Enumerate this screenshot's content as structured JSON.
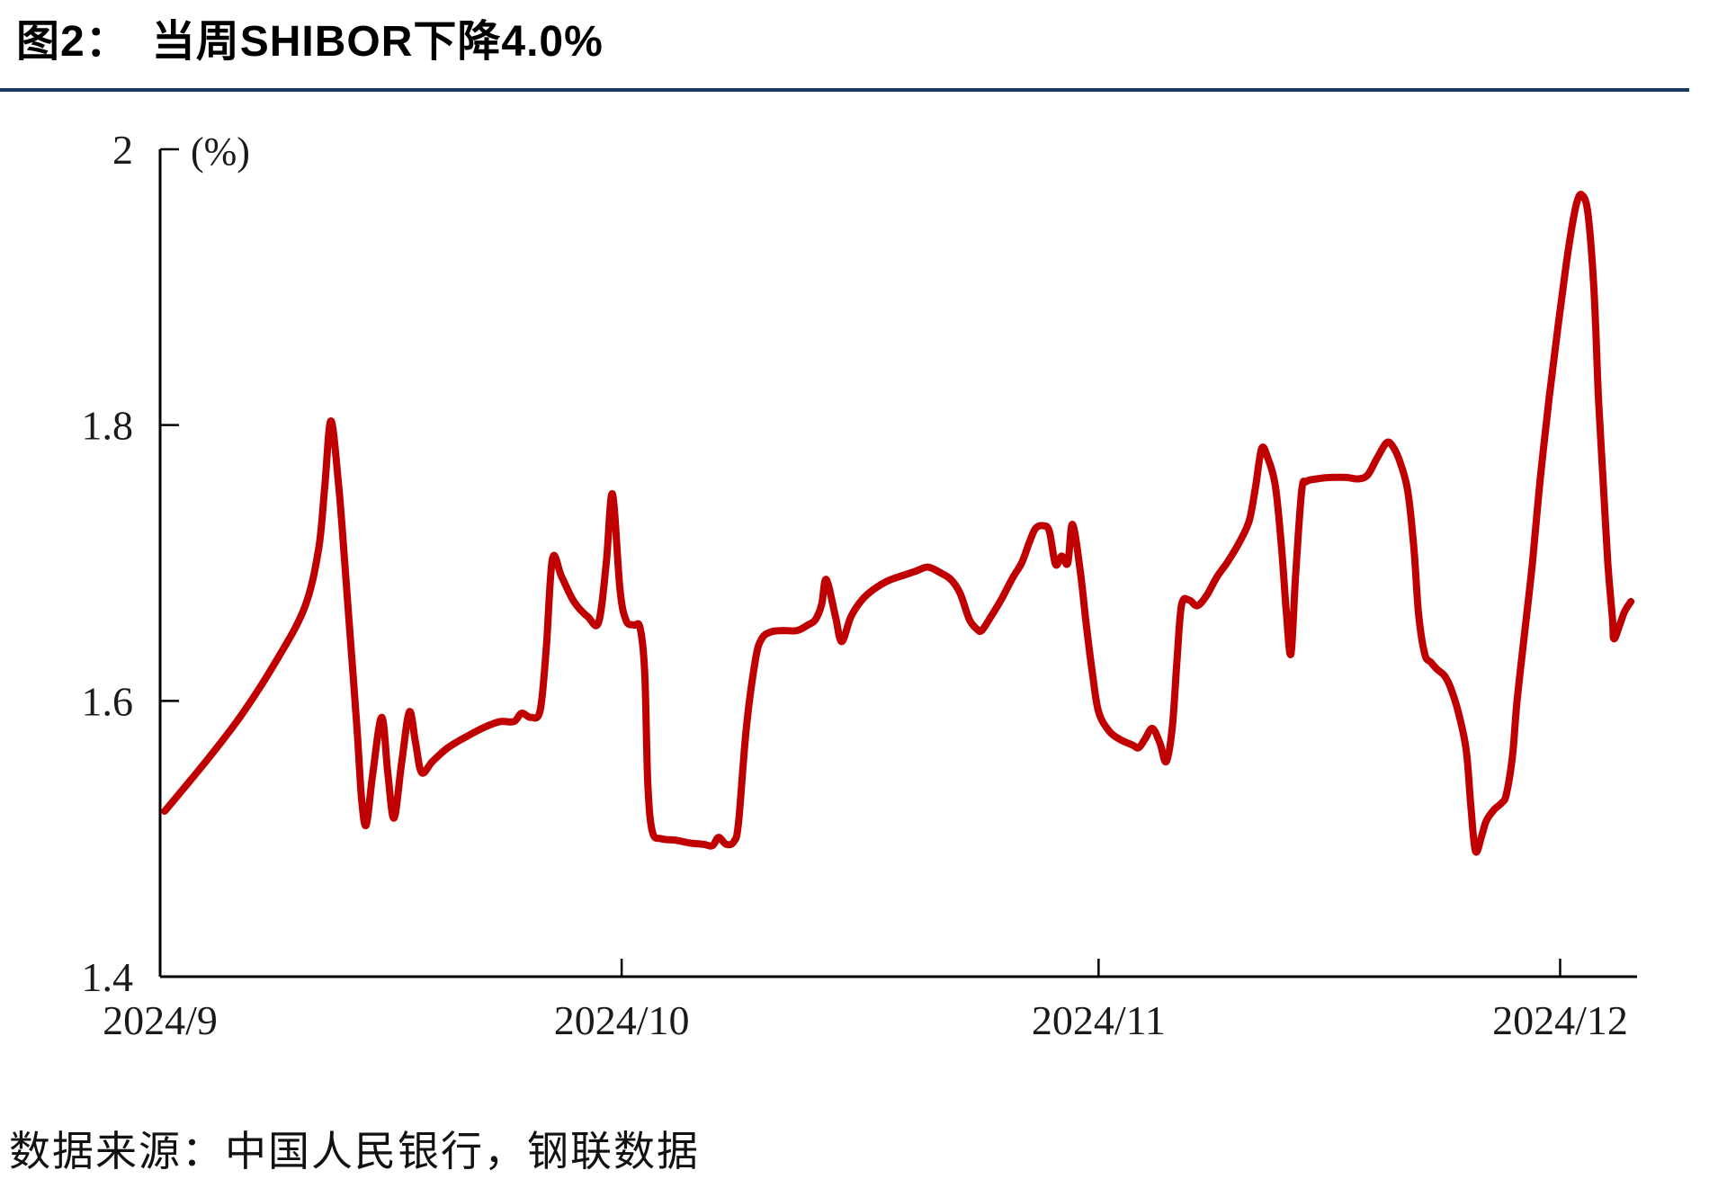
{
  "header": {
    "title": "图2：　当周SHIBOR下降4.0%"
  },
  "footer": {
    "source": "数据来源：中国人民银行，钢联数据"
  },
  "colors": {
    "line": "#C00000",
    "divider": "#17375E",
    "axis": "#000000",
    "tick_text": "#1a1a1a"
  },
  "chart_data": {
    "type": "line",
    "title": "图2：当周SHIBOR下降4.0%",
    "unit_label": "(%)",
    "ylim": [
      1.4,
      2.0
    ],
    "yticks": [
      {
        "value": 2.0,
        "label": "2"
      },
      {
        "value": 1.8,
        "label": "1.8"
      },
      {
        "value": 1.6,
        "label": "1.6"
      },
      {
        "value": 1.4,
        "label": "1.4"
      }
    ],
    "x_start_date": "2024/9/1",
    "x_domain_days": [
      0,
      96
    ],
    "x_ticks": [
      {
        "day": 0,
        "label": "2024/9"
      },
      {
        "day": 30,
        "label": "2024/10"
      },
      {
        "day": 61,
        "label": "2024/11"
      },
      {
        "day": 91,
        "label": "2024/12"
      }
    ],
    "grid": false,
    "legend": "none",
    "series": [
      {
        "name": "SHIBOR",
        "unit": "%",
        "points": [
          [
            0.3,
            1.52
          ],
          [
            2.9,
            1.555
          ],
          [
            5.3,
            1.59
          ],
          [
            7.6,
            1.63
          ],
          [
            9.4,
            1.668
          ],
          [
            10.3,
            1.71
          ],
          [
            10.7,
            1.755
          ],
          [
            11.1,
            1.803
          ],
          [
            11.6,
            1.757
          ],
          [
            12.0,
            1.7
          ],
          [
            12.4,
            1.64
          ],
          [
            12.8,
            1.58
          ],
          [
            13.1,
            1.528
          ],
          [
            13.4,
            1.51
          ],
          [
            13.8,
            1.545
          ],
          [
            14.4,
            1.588
          ],
          [
            14.8,
            1.548
          ],
          [
            15.2,
            1.515
          ],
          [
            15.7,
            1.555
          ],
          [
            16.2,
            1.592
          ],
          [
            16.6,
            1.57
          ],
          [
            17.0,
            1.548
          ],
          [
            17.7,
            1.556
          ],
          [
            18.7,
            1.566
          ],
          [
            19.9,
            1.574
          ],
          [
            21.1,
            1.581
          ],
          [
            22.1,
            1.585
          ],
          [
            23.0,
            1.585
          ],
          [
            23.5,
            1.591
          ],
          [
            24.1,
            1.588
          ],
          [
            24.7,
            1.593
          ],
          [
            25.1,
            1.638
          ],
          [
            25.5,
            1.703
          ],
          [
            26.1,
            1.69
          ],
          [
            26.9,
            1.672
          ],
          [
            27.8,
            1.661
          ],
          [
            28.5,
            1.657
          ],
          [
            29.0,
            1.7
          ],
          [
            29.4,
            1.75
          ],
          [
            29.9,
            1.68
          ],
          [
            30.3,
            1.658
          ],
          [
            30.8,
            1.655
          ],
          [
            31.2,
            1.653
          ],
          [
            31.5,
            1.62
          ],
          [
            31.7,
            1.54
          ],
          [
            32.0,
            1.505
          ],
          [
            32.6,
            1.5
          ],
          [
            33.5,
            1.499
          ],
          [
            34.4,
            1.497
          ],
          [
            35.3,
            1.496
          ],
          [
            35.9,
            1.495
          ],
          [
            36.3,
            1.501
          ],
          [
            36.8,
            1.496
          ],
          [
            37.3,
            1.498
          ],
          [
            37.6,
            1.512
          ],
          [
            38.1,
            1.58
          ],
          [
            38.7,
            1.63
          ],
          [
            39.1,
            1.645
          ],
          [
            39.7,
            1.65
          ],
          [
            40.5,
            1.651
          ],
          [
            41.4,
            1.651
          ],
          [
            42.1,
            1.655
          ],
          [
            42.6,
            1.659
          ],
          [
            43.0,
            1.67
          ],
          [
            43.3,
            1.688
          ],
          [
            43.9,
            1.661
          ],
          [
            44.3,
            1.643
          ],
          [
            44.9,
            1.661
          ],
          [
            45.6,
            1.673
          ],
          [
            46.4,
            1.681
          ],
          [
            47.3,
            1.687
          ],
          [
            48.3,
            1.691
          ],
          [
            49.1,
            1.694
          ],
          [
            49.9,
            1.697
          ],
          [
            50.7,
            1.693
          ],
          [
            51.4,
            1.688
          ],
          [
            52.0,
            1.678
          ],
          [
            52.6,
            1.659
          ],
          [
            53.1,
            1.652
          ],
          [
            53.4,
            1.651
          ],
          [
            54.0,
            1.661
          ],
          [
            54.7,
            1.674
          ],
          [
            55.4,
            1.689
          ],
          [
            56.0,
            1.7
          ],
          [
            56.5,
            1.715
          ],
          [
            56.9,
            1.725
          ],
          [
            57.4,
            1.727
          ],
          [
            57.8,
            1.723
          ],
          [
            58.2,
            1.699
          ],
          [
            58.6,
            1.705
          ],
          [
            59.0,
            1.7
          ],
          [
            59.3,
            1.728
          ],
          [
            59.8,
            1.695
          ],
          [
            60.2,
            1.655
          ],
          [
            60.6,
            1.62
          ],
          [
            61.0,
            1.592
          ],
          [
            61.7,
            1.578
          ],
          [
            62.4,
            1.572
          ],
          [
            63.2,
            1.568
          ],
          [
            63.6,
            1.566
          ],
          [
            64.0,
            1.572
          ],
          [
            64.5,
            1.58
          ],
          [
            65.0,
            1.569
          ],
          [
            65.4,
            1.556
          ],
          [
            65.8,
            1.582
          ],
          [
            66.1,
            1.63
          ],
          [
            66.4,
            1.67
          ],
          [
            66.9,
            1.673
          ],
          [
            67.4,
            1.669
          ],
          [
            68.0,
            1.676
          ],
          [
            68.7,
            1.69
          ],
          [
            69.4,
            1.701
          ],
          [
            70.2,
            1.716
          ],
          [
            70.8,
            1.731
          ],
          [
            71.2,
            1.755
          ],
          [
            71.6,
            1.783
          ],
          [
            72.0,
            1.776
          ],
          [
            72.5,
            1.755
          ],
          [
            72.9,
            1.71
          ],
          [
            73.2,
            1.665
          ],
          [
            73.5,
            1.634
          ],
          [
            73.8,
            1.69
          ],
          [
            74.2,
            1.752
          ],
          [
            74.5,
            1.759
          ],
          [
            75.2,
            1.761
          ],
          [
            76.1,
            1.762
          ],
          [
            77.1,
            1.762
          ],
          [
            77.9,
            1.761
          ],
          [
            78.5,
            1.764
          ],
          [
            79.1,
            1.776
          ],
          [
            79.7,
            1.787
          ],
          [
            80.1,
            1.785
          ],
          [
            80.6,
            1.773
          ],
          [
            81.1,
            1.752
          ],
          [
            81.5,
            1.71
          ],
          [
            81.8,
            1.663
          ],
          [
            82.2,
            1.634
          ],
          [
            82.6,
            1.628
          ],
          [
            83.0,
            1.623
          ],
          [
            83.5,
            1.618
          ],
          [
            83.9,
            1.609
          ],
          [
            84.4,
            1.591
          ],
          [
            84.9,
            1.564
          ],
          [
            85.2,
            1.523
          ],
          [
            85.5,
            1.491
          ],
          [
            85.9,
            1.502
          ],
          [
            86.2,
            1.513
          ],
          [
            86.7,
            1.521
          ],
          [
            87.2,
            1.526
          ],
          [
            87.5,
            1.532
          ],
          [
            87.9,
            1.56
          ],
          [
            88.2,
            1.6
          ],
          [
            88.7,
            1.65
          ],
          [
            89.2,
            1.7
          ],
          [
            89.7,
            1.76
          ],
          [
            90.3,
            1.821
          ],
          [
            90.9,
            1.875
          ],
          [
            91.4,
            1.917
          ],
          [
            91.8,
            1.946
          ],
          [
            92.1,
            1.962
          ],
          [
            92.4,
            1.967
          ],
          [
            92.8,
            1.954
          ],
          [
            93.2,
            1.898
          ],
          [
            93.5,
            1.818
          ],
          [
            93.8,
            1.758
          ],
          [
            94.1,
            1.7
          ],
          [
            94.4,
            1.66
          ],
          [
            94.5,
            1.645
          ],
          [
            94.9,
            1.656
          ],
          [
            95.2,
            1.665
          ],
          [
            95.6,
            1.672
          ]
        ]
      }
    ]
  }
}
